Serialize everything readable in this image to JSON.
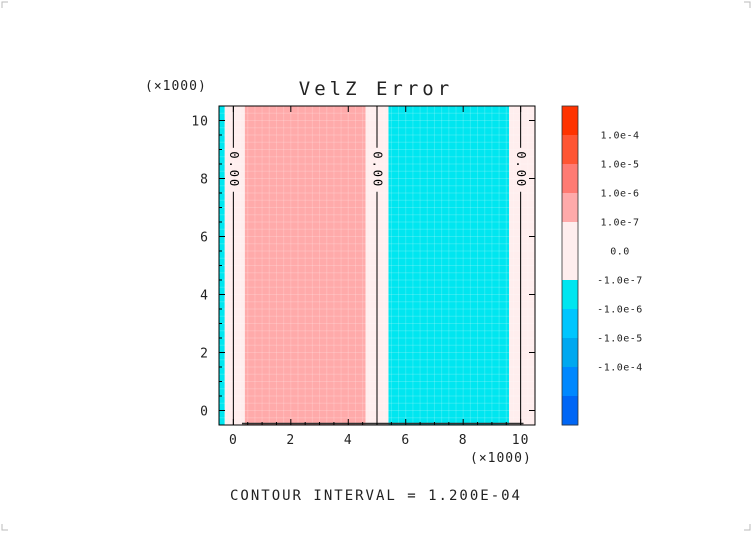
{
  "chart_data": {
    "type": "heatmap",
    "title": "VelZ Error",
    "x_multiplier": "(×1000)",
    "y_multiplier": "(×1000)",
    "xlim": [
      -0.5,
      10.5
    ],
    "ylim": [
      -0.5,
      10.5
    ],
    "xticks": [
      0,
      2,
      4,
      6,
      8,
      10
    ],
    "yticks": [
      0,
      2,
      4,
      6,
      8,
      10
    ],
    "bands": [
      {
        "x0": -0.5,
        "x1": -0.3,
        "level": -1
      },
      {
        "x0": -0.3,
        "x1": 0.4,
        "level": 0
      },
      {
        "x0": 0.4,
        "x1": 4.6,
        "level": 1
      },
      {
        "x0": 4.6,
        "x1": 5.4,
        "level": 0
      },
      {
        "x0": 5.4,
        "x1": 9.6,
        "level": -1
      },
      {
        "x0": 9.6,
        "x1": 10.5,
        "level": 0
      }
    ],
    "contour_lines": [
      {
        "x": 0.0,
        "label": "0.00"
      },
      {
        "x": 5.0,
        "label": "0.00"
      },
      {
        "x": 10.0,
        "label": "0.00"
      }
    ],
    "colorbar": {
      "colors": [
        "#ff3300",
        "#ff5533",
        "#ff7b73",
        "#ffaaaa",
        "#ffeeee",
        "#ffeeee",
        "#00e6f0",
        "#00c6ff",
        "#00a8f0",
        "#0088ff",
        "#0066f5"
      ],
      "labels": [
        "1.0e-4",
        "1.0e-5",
        "1.0e-6",
        "1.0e-7",
        "0.0",
        "-1.0e-7",
        "-1.0e-6",
        "-1.0e-5",
        "-1.0e-4"
      ]
    },
    "level_colors": {
      "1": "#ffaaaa",
      "0": "#ffeeee",
      "-1": "#00e6f0"
    },
    "footer": "CONTOUR INTERVAL = 1.200E-04"
  }
}
